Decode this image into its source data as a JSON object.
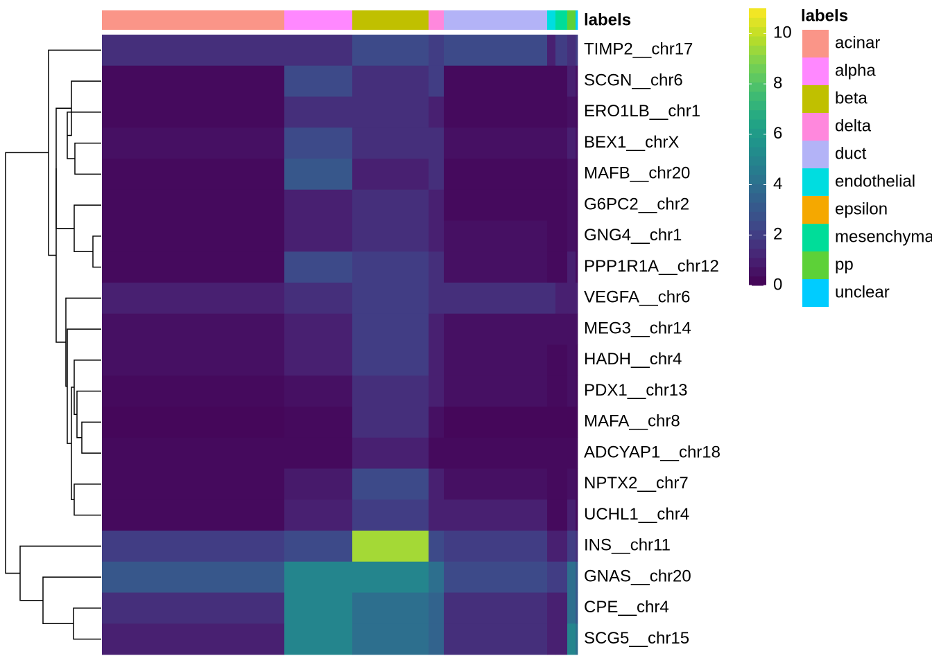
{
  "chart_data": {
    "type": "heatmap",
    "annotation_name": "labels",
    "legend_title": "labels",
    "legend": [
      {
        "label": "acinar",
        "color": "#fa9588"
      },
      {
        "label": "alpha",
        "color": "#ff88ff"
      },
      {
        "label": "beta",
        "color": "#c0c000"
      },
      {
        "label": "delta",
        "color": "#ff88dd"
      },
      {
        "label": "duct",
        "color": "#b3b3f7"
      },
      {
        "label": "endothelial",
        "color": "#00dde0"
      },
      {
        "label": "epsilon",
        "color": "#f5a800"
      },
      {
        "label": "mesenchymal",
        "color": "#00dd99"
      },
      {
        "label": "pp",
        "color": "#5dd138"
      },
      {
        "label": "unclear",
        "color": "#00ccff"
      }
    ],
    "column_groups": [
      {
        "legend_index": 0,
        "cells": 263
      },
      {
        "legend_index": 1,
        "cells": 98
      },
      {
        "legend_index": 2,
        "cells": 110
      },
      {
        "legend_index": 3,
        "cells": 22
      },
      {
        "legend_index": 4,
        "cells": 149
      },
      {
        "legend_index": 5,
        "cells": 12
      },
      {
        "legend_index": 7,
        "cells": 17
      },
      {
        "legend_index": 8,
        "cells": 12
      },
      {
        "legend_index": 9,
        "cells": 3
      }
    ],
    "rows": [
      {
        "name": "TIMP2__chr17",
        "values": [
          1.5,
          1.5,
          2.5,
          2,
          2.5,
          1,
          2,
          1.5,
          2
        ]
      },
      {
        "name": "SCGN__chr6",
        "values": [
          0.3,
          2.5,
          1.5,
          2,
          0.3,
          0.3,
          0.3,
          1,
          0.5
        ]
      },
      {
        "name": "ERO1LB__chr1",
        "values": [
          0.3,
          1.5,
          1.5,
          1,
          0.3,
          0.3,
          0.3,
          0.5,
          0.3
        ]
      },
      {
        "name": "BEX1__chrX",
        "values": [
          0.5,
          2.5,
          1.5,
          1.5,
          0.5,
          0.5,
          0.5,
          1,
          0.5
        ]
      },
      {
        "name": "MAFB__chr20",
        "values": [
          0.3,
          3,
          1,
          1.5,
          0.3,
          0.3,
          0.3,
          0.5,
          0.3
        ]
      },
      {
        "name": "G6PC2__chr2",
        "values": [
          0.3,
          1,
          1.5,
          1,
          0.3,
          0.3,
          0.3,
          0.5,
          0.3
        ]
      },
      {
        "name": "GNG4__chr1",
        "values": [
          0.3,
          1,
          1.5,
          1,
          0.5,
          0.3,
          0.3,
          0.5,
          0.3
        ]
      },
      {
        "name": "PPP1R1A__chr12",
        "values": [
          0.3,
          2.5,
          2,
          1.5,
          0.5,
          0.3,
          0.3,
          1,
          0.3
        ]
      },
      {
        "name": "VEGFA__chr6",
        "values": [
          1,
          1.5,
          2,
          1.5,
          1.5,
          1.5,
          1,
          1,
          1
        ]
      },
      {
        "name": "MEG3__chr14",
        "values": [
          0.5,
          1,
          2,
          1,
          0.5,
          0.5,
          0.5,
          0.5,
          0.5
        ]
      },
      {
        "name": "HADH__chr4",
        "values": [
          0.5,
          1,
          2,
          1,
          0.5,
          0.3,
          0.3,
          0.5,
          0.3
        ]
      },
      {
        "name": "PDX1__chr13",
        "values": [
          0.3,
          0.5,
          1.5,
          1,
          0.5,
          0.3,
          0.3,
          0.5,
          0.3
        ]
      },
      {
        "name": "MAFA__chr8",
        "values": [
          0.2,
          0.3,
          1.5,
          0.5,
          0.2,
          0.2,
          0.2,
          0.2,
          0.2
        ]
      },
      {
        "name": "ADCYAP1__chr18",
        "values": [
          0.3,
          0.3,
          1,
          0.3,
          0.3,
          0.3,
          0.3,
          0.3,
          0.3
        ]
      },
      {
        "name": "NPTX2__chr7",
        "values": [
          0.3,
          0.8,
          2.5,
          1,
          0.5,
          0.3,
          0.3,
          0.5,
          0.3
        ]
      },
      {
        "name": "UCHL1__chr4",
        "values": [
          0.3,
          1,
          2,
          1,
          1,
          0.3,
          0.3,
          1,
          0.3
        ]
      },
      {
        "name": "INS__chr11",
        "values": [
          2,
          2.5,
          9.5,
          2.5,
          2,
          1,
          1,
          2,
          1.5
        ]
      },
      {
        "name": "GNAS__chr20",
        "values": [
          3,
          5,
          5,
          4,
          2.5,
          2,
          2,
          4,
          3
        ]
      },
      {
        "name": "CPE__chr4",
        "values": [
          1.5,
          5,
          4,
          3.5,
          1.5,
          1,
          1,
          4,
          3
        ]
      },
      {
        "name": "SCG5__chr15",
        "values": [
          1,
          5,
          4,
          3.5,
          1.5,
          1,
          1,
          5,
          4
        ]
      }
    ],
    "zlim": [
      0,
      11
    ],
    "zticks": [
      0,
      2,
      4,
      6,
      8,
      10
    ]
  }
}
